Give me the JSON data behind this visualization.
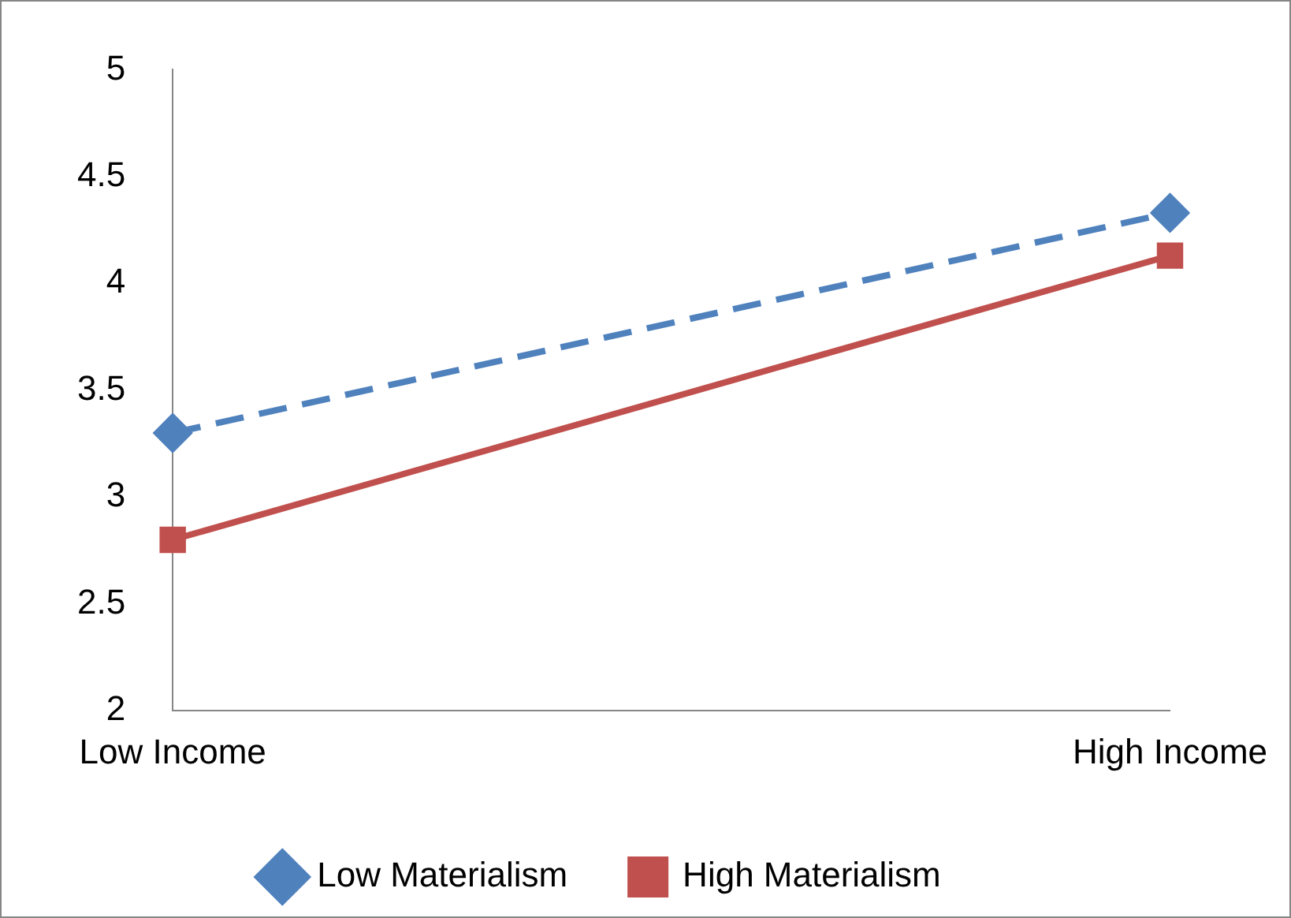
{
  "chart_data": {
    "type": "line",
    "categories": [
      "Low Income",
      "High Income"
    ],
    "series": [
      {
        "name": "Low Materialism",
        "color": "#4f81bd",
        "values": [
          3.3,
          4.33
        ],
        "marker": "diamond",
        "line_style": "dashed"
      },
      {
        "name": "High Materialism",
        "color": "#c0504d",
        "values": [
          2.8,
          4.13
        ],
        "marker": "square",
        "line_style": "solid"
      }
    ],
    "ylim": [
      2,
      5
    ],
    "yticks": [
      2,
      2.5,
      3,
      3.5,
      4,
      4.5,
      5
    ],
    "grid": false,
    "legend": "bottom"
  }
}
